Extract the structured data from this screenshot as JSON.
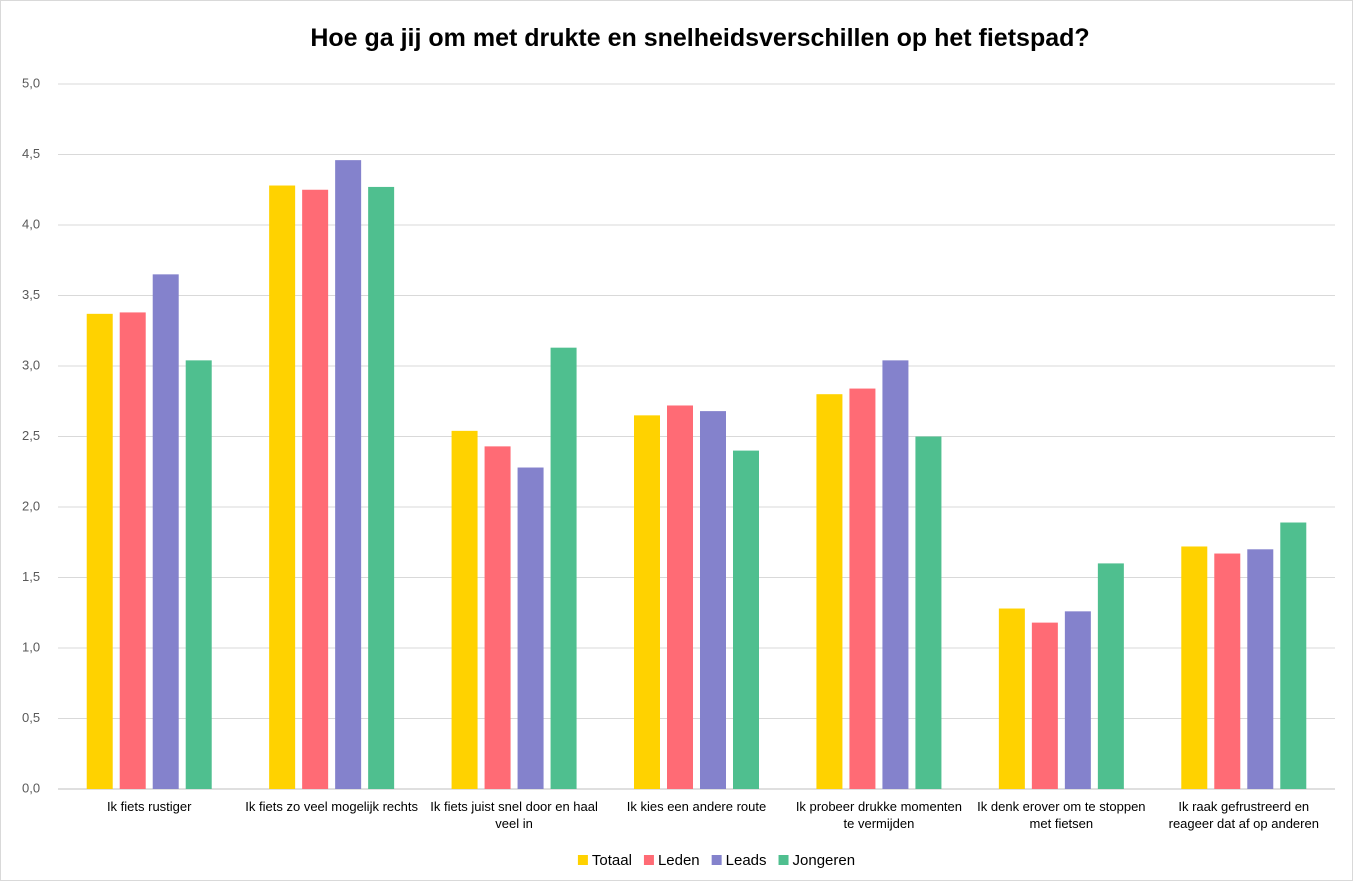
{
  "chart_data": {
    "type": "bar",
    "title": "Hoe ga jij om met drukte en snelheidsverschillen op het fietspad?",
    "categories": [
      "Ik fiets rustiger",
      "Ik fiets zo veel mogelijk rechts",
      "Ik fiets juist snel door en haal veel in",
      "Ik kies een andere route",
      "Ik probeer drukke momenten te vermijden",
      "Ik denk erover om te stoppen met fietsen",
      "Ik raak gefrustreerd en reageer dat af op anderen"
    ],
    "series": [
      {
        "name": "Totaal",
        "color": "#FFD200",
        "values": [
          3.37,
          4.28,
          2.54,
          2.65,
          2.8,
          1.28,
          1.72
        ]
      },
      {
        "name": "Leden",
        "color": "#FF6B75",
        "values": [
          3.38,
          4.25,
          2.43,
          2.72,
          2.84,
          1.18,
          1.67
        ]
      },
      {
        "name": "Leads",
        "color": "#8482CC",
        "values": [
          3.65,
          4.46,
          2.28,
          2.68,
          3.04,
          1.26,
          1.7
        ]
      },
      {
        "name": "Jongeren",
        "color": "#4FBF8F",
        "values": [
          3.04,
          4.27,
          3.13,
          2.4,
          2.5,
          1.6,
          1.89
        ]
      }
    ],
    "ylim": [
      0,
      5
    ],
    "yticks": [
      {
        "value": 0,
        "label": "0,0"
      },
      {
        "value": 0.5,
        "label": "0,5"
      },
      {
        "value": 1,
        "label": "1,0"
      },
      {
        "value": 1.5,
        "label": "1,5"
      },
      {
        "value": 2,
        "label": "2,0"
      },
      {
        "value": 2.5,
        "label": "2,5"
      },
      {
        "value": 3,
        "label": "3,0"
      },
      {
        "value": 3.5,
        "label": "3,5"
      },
      {
        "value": 4,
        "label": "4,0"
      },
      {
        "value": 4.5,
        "label": "4,5"
      },
      {
        "value": 5,
        "label": "5,0"
      }
    ],
    "grid": true,
    "legend": "bottom"
  }
}
